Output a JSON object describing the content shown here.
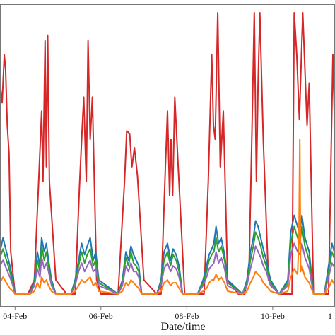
{
  "chart_data": {
    "type": "line",
    "xlabel": "Date/time",
    "ylabel": "",
    "title": "",
    "grid": false,
    "legend": "none",
    "xticks": [
      "04-Feb",
      "06-Feb",
      "08-Feb",
      "10-Feb",
      "1"
    ],
    "xlim": [
      3.65,
      11.45
    ],
    "ylim": [
      0,
      100
    ],
    "colors": {
      "red": "#d62728",
      "blue": "#1f77b4",
      "green": "#2ca02c",
      "purple": "#9467bd",
      "orange": "#ff7f0e",
      "frame": "#777777"
    },
    "series": [
      {
        "color": "#d62728",
        "x": [
          3.65,
          3.7,
          3.75,
          3.78,
          3.82,
          3.86,
          3.9,
          4.0,
          4.3,
          4.45,
          4.55,
          4.62,
          4.65,
          4.7,
          4.73,
          4.76,
          4.8,
          4.95,
          5.2,
          5.4,
          5.5,
          5.56,
          5.6,
          5.66,
          5.7,
          5.75,
          5.8,
          5.9,
          6.0,
          6.2,
          6.4,
          6.55,
          6.6,
          6.67,
          6.72,
          6.78,
          6.85,
          7.0,
          7.3,
          7.4,
          7.5,
          7.55,
          7.6,
          7.63,
          7.67,
          7.72,
          7.8,
          7.95,
          8.2,
          8.4,
          8.5,
          8.58,
          8.62,
          8.66,
          8.72,
          8.78,
          8.85,
          8.95,
          9.2,
          9.35,
          9.45,
          9.52,
          9.57,
          9.62,
          9.66,
          9.7,
          9.78,
          9.9,
          10.15,
          10.3,
          10.45,
          10.5,
          10.56,
          10.62,
          10.7,
          10.8,
          10.85,
          10.95,
          11.15,
          11.3,
          11.4,
          11.45
        ],
        "y": [
          75,
          68,
          85,
          80,
          60,
          50,
          15,
          0,
          0,
          5,
          40,
          65,
          40,
          90,
          45,
          92,
          40,
          5,
          0,
          0,
          38,
          58,
          70,
          40,
          90,
          55,
          70,
          5,
          0,
          0,
          0,
          40,
          58,
          57,
          45,
          52,
          42,
          5,
          0,
          0,
          45,
          65,
          35,
          55,
          35,
          70,
          45,
          0,
          0,
          0,
          40,
          85,
          60,
          55,
          100,
          45,
          65,
          5,
          0,
          0,
          10,
          60,
          100,
          40,
          75,
          100,
          55,
          5,
          0,
          0,
          0,
          100,
          85,
          62,
          100,
          60,
          75,
          0,
          0,
          0,
          85,
          55
        ]
      },
      {
        "color": "#1f77b4",
        "x": [
          3.65,
          3.72,
          3.8,
          3.88,
          3.95,
          4.0,
          4.35,
          4.45,
          4.52,
          4.58,
          4.62,
          4.68,
          4.73,
          4.78,
          4.85,
          4.95,
          5.3,
          5.4,
          5.48,
          5.55,
          5.62,
          5.68,
          5.75,
          5.82,
          5.88,
          5.95,
          6.4,
          6.5,
          6.58,
          6.64,
          6.7,
          6.76,
          6.82,
          6.88,
          6.95,
          7.3,
          7.4,
          7.47,
          7.55,
          7.62,
          7.68,
          7.75,
          7.82,
          7.9,
          8.25,
          8.38,
          8.46,
          8.52,
          8.58,
          8.63,
          8.68,
          8.74,
          8.8,
          8.88,
          8.95,
          9.3,
          9.4,
          9.48,
          9.55,
          9.6,
          9.66,
          9.72,
          9.78,
          9.85,
          9.95,
          10.15,
          10.35,
          10.42,
          10.5,
          10.58,
          10.63,
          10.68,
          10.75,
          10.85,
          10.95,
          11.2,
          11.3,
          11.38,
          11.45
        ],
        "y": [
          15,
          20,
          15,
          10,
          5,
          0,
          0,
          5,
          15,
          10,
          20,
          15,
          18,
          12,
          5,
          0,
          0,
          5,
          12,
          18,
          14,
          17,
          20,
          12,
          15,
          5,
          0,
          5,
          15,
          12,
          17,
          14,
          12,
          10,
          0,
          0,
          5,
          15,
          18,
          12,
          16,
          14,
          10,
          0,
          0,
          5,
          10,
          14,
          16,
          18,
          24,
          18,
          20,
          14,
          5,
          0,
          5,
          15,
          20,
          26,
          24,
          20,
          16,
          12,
          5,
          0,
          5,
          22,
          28,
          24,
          22,
          28,
          20,
          15,
          0,
          0,
          10,
          18,
          14
        ]
      },
      {
        "color": "#2ca02c",
        "x": [
          3.65,
          3.72,
          3.8,
          3.88,
          3.95,
          4.0,
          4.35,
          4.45,
          4.52,
          4.58,
          4.62,
          4.68,
          4.73,
          4.78,
          4.85,
          4.95,
          5.3,
          5.4,
          5.48,
          5.55,
          5.62,
          5.68,
          5.75,
          5.82,
          5.88,
          5.95,
          6.4,
          6.5,
          6.58,
          6.64,
          6.7,
          6.76,
          6.82,
          6.88,
          6.95,
          7.3,
          7.4,
          7.47,
          7.55,
          7.62,
          7.68,
          7.75,
          7.82,
          7.9,
          8.25,
          8.38,
          8.46,
          8.52,
          8.58,
          8.63,
          8.68,
          8.74,
          8.8,
          8.88,
          8.95,
          9.3,
          9.4,
          9.48,
          9.55,
          9.6,
          9.66,
          9.72,
          9.78,
          9.85,
          9.95,
          10.15,
          10.35,
          10.42,
          10.5,
          10.58,
          10.63,
          10.68,
          10.75,
          10.85,
          10.95,
          11.2,
          11.3,
          11.38,
          11.45
        ],
        "y": [
          13,
          16,
          12,
          8,
          4,
          0,
          0,
          4,
          12,
          8,
          17,
          12,
          15,
          10,
          4,
          0,
          0,
          4,
          10,
          15,
          11,
          14,
          16,
          10,
          12,
          4,
          0,
          4,
          13,
          10,
          15,
          11,
          10,
          8,
          0,
          0,
          4,
          12,
          15,
          10,
          14,
          12,
          8,
          0,
          0,
          4,
          8,
          12,
          14,
          15,
          20,
          15,
          17,
          12,
          4,
          0,
          4,
          12,
          17,
          22,
          20,
          17,
          13,
          10,
          4,
          0,
          4,
          18,
          24,
          20,
          18,
          24,
          17,
          12,
          0,
          0,
          8,
          15,
          12
        ]
      },
      {
        "color": "#9467bd",
        "x": [
          3.65,
          3.72,
          3.8,
          3.88,
          3.95,
          4.0,
          4.35,
          4.45,
          4.52,
          4.58,
          4.62,
          4.68,
          4.73,
          4.78,
          4.85,
          4.95,
          5.3,
          5.4,
          5.48,
          5.55,
          5.62,
          5.68,
          5.75,
          5.82,
          5.88,
          5.95,
          6.4,
          6.5,
          6.58,
          6.64,
          6.7,
          6.76,
          6.82,
          6.88,
          6.95,
          7.3,
          7.4,
          7.47,
          7.55,
          7.62,
          7.68,
          7.75,
          7.82,
          7.9,
          8.25,
          8.38,
          8.46,
          8.52,
          8.58,
          8.63,
          8.68,
          8.74,
          8.8,
          8.88,
          8.95,
          9.3,
          9.4,
          9.48,
          9.55,
          9.6,
          9.66,
          9.72,
          9.78,
          9.85,
          9.95,
          10.15,
          10.35,
          10.42,
          10.5,
          10.58,
          10.63,
          10.68,
          10.75,
          10.85,
          10.95,
          11.2,
          11.3,
          11.38,
          11.45
        ],
        "y": [
          10,
          12,
          9,
          6,
          3,
          0,
          0,
          3,
          9,
          6,
          13,
          9,
          11,
          8,
          3,
          0,
          0,
          3,
          8,
          11,
          8,
          10,
          12,
          8,
          9,
          3,
          0,
          3,
          10,
          8,
          11,
          8,
          8,
          6,
          0,
          0,
          3,
          9,
          11,
          8,
          10,
          9,
          6,
          0,
          0,
          3,
          6,
          9,
          10,
          11,
          15,
          11,
          13,
          9,
          3,
          0,
          3,
          9,
          13,
          17,
          15,
          13,
          10,
          8,
          3,
          0,
          3,
          14,
          18,
          15,
          14,
          18,
          13,
          9,
          0,
          0,
          6,
          11,
          9
        ]
      },
      {
        "color": "#ff7f0e",
        "x": [
          3.65,
          3.72,
          3.8,
          3.88,
          3.95,
          4.0,
          4.35,
          4.45,
          4.52,
          4.58,
          4.62,
          4.68,
          4.73,
          4.78,
          4.85,
          4.95,
          5.3,
          5.4,
          5.48,
          5.55,
          5.62,
          5.68,
          5.75,
          5.82,
          5.88,
          5.95,
          6.4,
          6.5,
          6.58,
          6.64,
          6.7,
          6.76,
          6.82,
          6.88,
          6.95,
          7.3,
          7.4,
          7.47,
          7.55,
          7.62,
          7.68,
          7.75,
          7.82,
          7.9,
          8.25,
          8.38,
          8.46,
          8.52,
          8.58,
          8.63,
          8.68,
          8.74,
          8.8,
          8.88,
          8.95,
          9.3,
          9.4,
          9.48,
          9.55,
          9.6,
          9.66,
          9.72,
          9.78,
          9.85,
          9.95,
          10.15,
          10.35,
          10.42,
          10.5,
          10.58,
          10.61,
          10.63,
          10.65,
          10.68,
          10.75,
          10.85,
          10.95,
          11.2,
          11.3,
          11.38,
          11.45
        ],
        "y": [
          4,
          6,
          4,
          2,
          1,
          0,
          0,
          1,
          4,
          2,
          6,
          4,
          5,
          3,
          1,
          0,
          0,
          1,
          3,
          5,
          4,
          5,
          6,
          3,
          4,
          1,
          0,
          1,
          4,
          3,
          5,
          4,
          3,
          2,
          0,
          0,
          1,
          4,
          5,
          3,
          4,
          4,
          2,
          0,
          0,
          1,
          2,
          4,
          5,
          5,
          7,
          5,
          6,
          4,
          1,
          0,
          1,
          4,
          6,
          8,
          7,
          6,
          4,
          3,
          1,
          0,
          1,
          6,
          9,
          7,
          20,
          55,
          8,
          10,
          6,
          4,
          0,
          0,
          2,
          5,
          3
        ]
      }
    ]
  }
}
